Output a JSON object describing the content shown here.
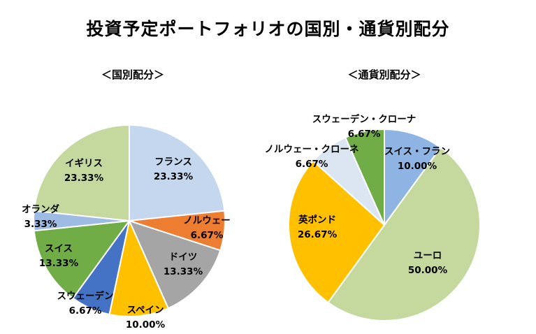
{
  "title": "投資予定ポートフォリオの国別・通貨別配分",
  "chart_data": [
    {
      "type": "pie",
      "title": "＜国別配分＞",
      "slices": [
        {
          "name": "フランス",
          "value": 23.33,
          "label": "23.33%",
          "color": "#c5d6ef"
        },
        {
          "name": "ノルウェー",
          "value": 6.67,
          "label": "6.67%",
          "color": "#ed7d31"
        },
        {
          "name": "ドイツ",
          "value": 13.33,
          "label": "13.33%",
          "color": "#a5a5a5"
        },
        {
          "name": "スペイン",
          "value": 10.0,
          "label": "10.00%",
          "color": "#ffc000"
        },
        {
          "name": "スウェーデン",
          "value": 6.67,
          "label": "6.67%",
          "color": "#4472c4"
        },
        {
          "name": "スイス",
          "value": 13.33,
          "label": "13.33%",
          "color": "#70ad47"
        },
        {
          "name": "オランダ",
          "value": 3.33,
          "label": "3.33%",
          "color": "#9dbbe3"
        },
        {
          "name": "イギリス",
          "value": 23.33,
          "label": "23.33%",
          "color": "#c5d89e"
        }
      ]
    },
    {
      "type": "pie",
      "title": "＜通貨別配分＞",
      "slices": [
        {
          "name": "スイス・フラン",
          "value": 10.0,
          "label": "10.00%",
          "color": "#8eb4e3"
        },
        {
          "name": "ユーロ",
          "value": 50.0,
          "label": "50.00%",
          "color": "#c5d89e"
        },
        {
          "name": "英ポンド",
          "value": 26.67,
          "label": "26.67%",
          "color": "#ffc000"
        },
        {
          "name": "ノルウェー・クローネ",
          "value": 6.67,
          "label": "6.67%",
          "color": "#dce6f2"
        },
        {
          "name": "スウェーデン・クローナ",
          "value": 6.67,
          "label": "6.67%",
          "color": "#70ad47"
        }
      ]
    }
  ]
}
